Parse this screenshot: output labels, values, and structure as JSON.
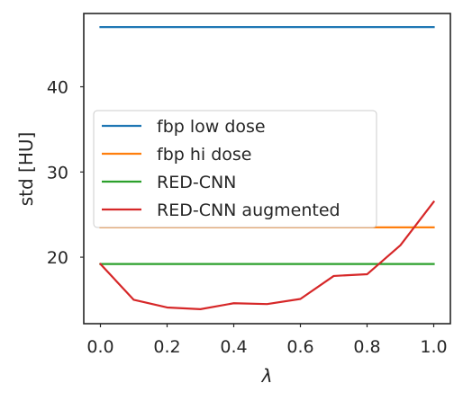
{
  "chart_data": {
    "type": "line",
    "xlabel": "λ",
    "ylabel": "std [HU]",
    "xlim": [
      -0.05,
      1.05
    ],
    "ylim": [
      12.2,
      48.6
    ],
    "xticks": [
      0.0,
      0.2,
      0.4,
      0.6,
      0.8,
      1.0
    ],
    "xtick_labels": [
      "0.0",
      "0.2",
      "0.4",
      "0.6",
      "0.8",
      "1.0"
    ],
    "yticks": [
      20,
      30,
      40
    ],
    "ytick_labels": [
      "20",
      "30",
      "40"
    ],
    "grid": false,
    "legend_position": "center-left",
    "x": [
      0.0,
      0.1,
      0.2,
      0.3,
      0.4,
      0.5,
      0.6,
      0.7,
      0.8,
      0.9,
      1.0
    ],
    "series": [
      {
        "name": "fbp low dose",
        "color": "#1f77b4",
        "values": [
          47,
          47,
          47,
          47,
          47,
          47,
          47,
          47,
          47,
          47,
          47
        ]
      },
      {
        "name": "fbp hi dose",
        "color": "#ff7f0e",
        "values": [
          23.5,
          23.5,
          23.5,
          23.5,
          23.5,
          23.5,
          23.5,
          23.5,
          23.5,
          23.5,
          23.5
        ]
      },
      {
        "name": "RED-CNN",
        "color": "#2ca02c",
        "values": [
          19.2,
          19.2,
          19.2,
          19.2,
          19.2,
          19.2,
          19.2,
          19.2,
          19.2,
          19.2,
          19.2
        ]
      },
      {
        "name": "RED-CNN augmented",
        "color": "#d62728",
        "values": [
          19.2,
          15.0,
          14.1,
          13.9,
          14.6,
          14.5,
          15.1,
          17.8,
          18.0,
          21.4,
          26.5
        ]
      }
    ]
  }
}
